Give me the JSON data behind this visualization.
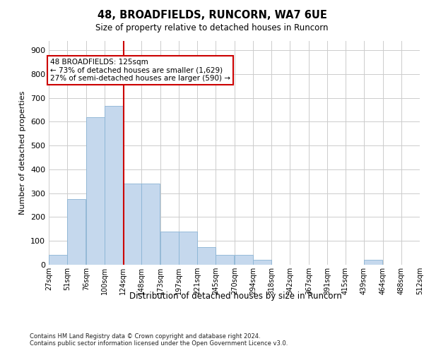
{
  "title1": "48, BROADFIELDS, RUNCORN, WA7 6UE",
  "title2": "Size of property relative to detached houses in Runcorn",
  "xlabel": "Distribution of detached houses by size in Runcorn",
  "ylabel": "Number of detached properties",
  "footnote1": "Contains HM Land Registry data © Crown copyright and database right 2024.",
  "footnote2": "Contains public sector information licensed under the Open Government Licence v3.0.",
  "annotation_line1": "48 BROADFIELDS: 125sqm",
  "annotation_line2": "← 73% of detached houses are smaller (1,629)",
  "annotation_line3": "27% of semi-detached houses are larger (590) →",
  "property_sqm": 125,
  "bar_color": "#c5d8ed",
  "bar_edge_color": "#8ab4d4",
  "vline_color": "#cc0000",
  "bg_color": "#ffffff",
  "grid_color": "#cccccc",
  "bin_edges": [
    27,
    51,
    76,
    100,
    124,
    148,
    173,
    197,
    221,
    245,
    270,
    294,
    318,
    342,
    367,
    391,
    415,
    439,
    464,
    488,
    512
  ],
  "bin_labels": [
    "27sqm",
    "51sqm",
    "76sqm",
    "100sqm",
    "124sqm",
    "148sqm",
    "173sqm",
    "197sqm",
    "221sqm",
    "245sqm",
    "270sqm",
    "294sqm",
    "318sqm",
    "342sqm",
    "367sqm",
    "391sqm",
    "415sqm",
    "439sqm",
    "464sqm",
    "488sqm",
    "512sqm"
  ],
  "counts": [
    40,
    275,
    620,
    665,
    340,
    340,
    140,
    140,
    75,
    40,
    40,
    20,
    0,
    0,
    0,
    0,
    0,
    20,
    0,
    0
  ],
  "ylim": [
    0,
    940
  ],
  "yticks": [
    0,
    100,
    200,
    300,
    400,
    500,
    600,
    700,
    800,
    900
  ]
}
